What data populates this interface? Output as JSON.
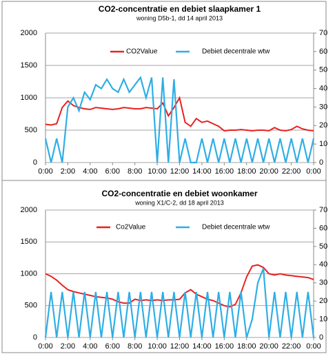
{
  "chart_data": [
    {
      "type": "line",
      "title": "CO2-concentratie en debiet slaapkamer 1",
      "subtitle": "woning D5b-1, dd 14 april 2013",
      "x": [
        0,
        0.5,
        1,
        1.5,
        2,
        2.5,
        3,
        3.5,
        4,
        4.5,
        5,
        5.5,
        6,
        6.5,
        7,
        7.5,
        8,
        8.5,
        9,
        9.5,
        10,
        10.5,
        11,
        11.5,
        12,
        12.5,
        13,
        13.5,
        14,
        14.5,
        15,
        15.5,
        16,
        16.5,
        17,
        17.5,
        18,
        18.5,
        19,
        19.5,
        20,
        20.5,
        21,
        21.5,
        22,
        22.5,
        23,
        23.5,
        24
      ],
      "series": [
        {
          "name": "CO2Value",
          "color": "#e8201f",
          "values": [
            590,
            580,
            600,
            850,
            950,
            880,
            850,
            830,
            820,
            850,
            840,
            830,
            820,
            830,
            850,
            840,
            830,
            830,
            850,
            840,
            830,
            920,
            720,
            850,
            1000,
            620,
            560,
            680,
            620,
            640,
            600,
            560,
            490,
            500,
            500,
            510,
            500,
            490,
            500,
            500,
            490,
            540,
            500,
            490,
            510,
            560,
            520,
            500,
            490
          ]
        },
        {
          "name": "Debiet decentrale wtw",
          "color": "#2eaee6",
          "axis": "y2",
          "values": [
            13,
            0,
            13,
            0,
            30,
            35,
            28,
            38,
            34,
            42,
            40,
            45,
            40,
            38,
            45,
            38,
            42,
            46,
            35,
            46,
            0,
            46,
            0,
            45,
            0,
            13,
            0,
            0,
            13,
            0,
            13,
            0,
            13,
            0,
            13,
            0,
            13,
            0,
            13,
            0,
            13,
            0,
            13,
            0,
            13,
            0,
            13,
            0,
            13
          ]
        }
      ],
      "xlim": [
        0,
        24
      ],
      "xticks": [
        {
          "value": 0,
          "label": "0:00"
        },
        {
          "value": 2,
          "label": "2:00"
        },
        {
          "value": 4,
          "label": "4:00"
        },
        {
          "value": 6,
          "label": "6:00"
        },
        {
          "value": 8,
          "label": "8:00"
        },
        {
          "value": 10,
          "label": "10:00"
        },
        {
          "value": 12,
          "label": "12:00"
        },
        {
          "value": 14,
          "label": "14:00"
        },
        {
          "value": 16,
          "label": "16:00"
        },
        {
          "value": 18,
          "label": "18:00"
        },
        {
          "value": 20,
          "label": "20:00"
        },
        {
          "value": 22,
          "label": "22:00"
        },
        {
          "value": 24,
          "label": "0:00"
        }
      ],
      "ylim": [
        0,
        2000
      ],
      "yticks": [
        0,
        500,
        1000,
        1500,
        2000
      ],
      "y2lim": [
        0,
        70
      ],
      "y2ticks": [
        0,
        10,
        20,
        30,
        40,
        50,
        60,
        70
      ],
      "grid": true,
      "legend": "top"
    },
    {
      "type": "line",
      "title": "CO2-concentratie en debiet woonkamer",
      "subtitle": "woning X1/C-2, dd 18 april 2013",
      "x": [
        0,
        0.5,
        1,
        1.5,
        2,
        2.5,
        3,
        3.5,
        4,
        4.5,
        5,
        5.5,
        6,
        6.5,
        7,
        7.5,
        8,
        8.5,
        9,
        9.5,
        10,
        10.5,
        11,
        11.5,
        12,
        12.5,
        13,
        13.5,
        14,
        14.5,
        15,
        15.5,
        16,
        16.5,
        17,
        17.5,
        18,
        18.5,
        19,
        19.5,
        20,
        20.5,
        21,
        21.5,
        22,
        22.5,
        23,
        23.5,
        24
      ],
      "series": [
        {
          "name": "Co2Value",
          "color": "#e8201f",
          "values": [
            1000,
            960,
            900,
            820,
            750,
            720,
            700,
            680,
            660,
            640,
            630,
            620,
            600,
            560,
            540,
            540,
            600,
            580,
            590,
            580,
            590,
            580,
            590,
            590,
            600,
            700,
            750,
            680,
            640,
            600,
            580,
            540,
            500,
            480,
            520,
            700,
            950,
            1120,
            1140,
            1100,
            1000,
            980,
            1000,
            980,
            970,
            960,
            950,
            940,
            910
          ]
        },
        {
          "name": "Debiet decentrale wtw",
          "color": "#2eaee6",
          "axis": "y2",
          "values": [
            0,
            25,
            0,
            25,
            0,
            25,
            0,
            25,
            0,
            25,
            0,
            25,
            0,
            25,
            0,
            25,
            0,
            25,
            0,
            25,
            0,
            25,
            0,
            25,
            0,
            25,
            0,
            25,
            0,
            25,
            0,
            25,
            0,
            25,
            0,
            25,
            0,
            10,
            30,
            38,
            0,
            25,
            0,
            25,
            0,
            25,
            0,
            25,
            0
          ]
        }
      ],
      "xlim": [
        0,
        24
      ],
      "xticks": [
        {
          "value": 0,
          "label": "0:00"
        },
        {
          "value": 2,
          "label": "2:00"
        },
        {
          "value": 4,
          "label": "4:00"
        },
        {
          "value": 6,
          "label": "6:00"
        },
        {
          "value": 8,
          "label": "8:00"
        },
        {
          "value": 10,
          "label": "10:00"
        },
        {
          "value": 12,
          "label": "12:00"
        },
        {
          "value": 14,
          "label": "14:00"
        },
        {
          "value": 16,
          "label": "16:00"
        },
        {
          "value": 18,
          "label": "18:00"
        },
        {
          "value": 20,
          "label": "20:00"
        },
        {
          "value": 22,
          "label": "22:00"
        },
        {
          "value": 24,
          "label": "0:00"
        }
      ],
      "ylim": [
        0,
        2000
      ],
      "yticks": [
        0,
        500,
        1000,
        1500,
        2000
      ],
      "y2lim": [
        0,
        70
      ],
      "y2ticks": [
        0,
        10,
        20,
        30,
        40,
        50,
        60,
        70
      ],
      "grid": true,
      "legend": "top"
    }
  ]
}
